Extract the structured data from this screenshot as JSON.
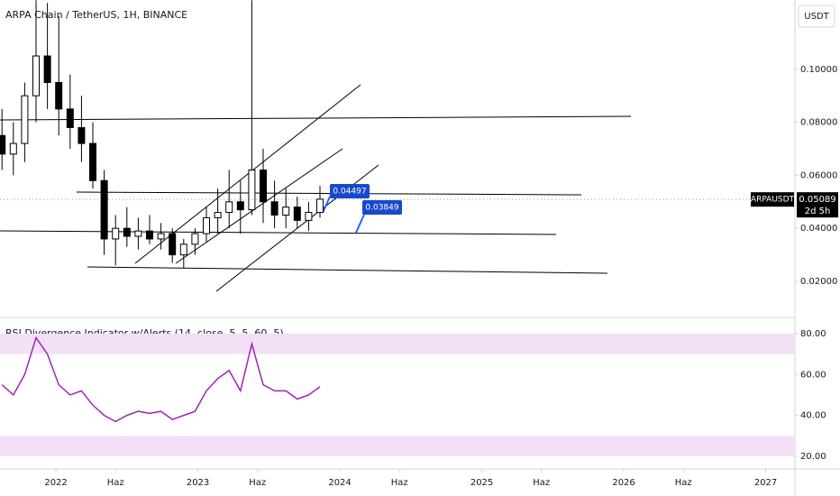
{
  "chart_data": [
    {
      "type": "candlestick",
      "title": "ARPA Chain / TetherUS, 1H, BINANCE",
      "axis_label": "USDT",
      "x": [
        2021.62,
        2021.7,
        2021.78,
        2021.86,
        2021.94,
        2022.02,
        2022.1,
        2022.18,
        2022.26,
        2022.34,
        2022.42,
        2022.5,
        2022.58,
        2022.66,
        2022.74,
        2022.82,
        2022.9,
        2022.98,
        2023.06,
        2023.14,
        2023.22,
        2023.3,
        2023.38,
        2023.46,
        2023.54,
        2023.62,
        2023.7,
        2023.78,
        2023.86
      ],
      "open": [
        0.075,
        0.068,
        0.072,
        0.09,
        0.105,
        0.095,
        0.085,
        0.078,
        0.072,
        0.058,
        0.036,
        0.04,
        0.037,
        0.039,
        0.036,
        0.038,
        0.03,
        0.034,
        0.038,
        0.044,
        0.046,
        0.05,
        0.047,
        0.062,
        0.05,
        0.045,
        0.048,
        0.043,
        0.046
      ],
      "high": [
        0.085,
        0.08,
        0.095,
        0.126,
        0.125,
        0.12,
        0.098,
        0.09,
        0.08,
        0.062,
        0.045,
        0.048,
        0.044,
        0.045,
        0.042,
        0.04,
        0.036,
        0.04,
        0.048,
        0.055,
        0.062,
        0.058,
        0.126,
        0.07,
        0.058,
        0.055,
        0.052,
        0.05,
        0.056
      ],
      "low": [
        0.062,
        0.06,
        0.065,
        0.08,
        0.085,
        0.075,
        0.07,
        0.065,
        0.055,
        0.03,
        0.026,
        0.033,
        0.032,
        0.034,
        0.032,
        0.027,
        0.025,
        0.03,
        0.035,
        0.038,
        0.04,
        0.038,
        0.045,
        0.042,
        0.04,
        0.04,
        0.04,
        0.039,
        0.044
      ],
      "close": [
        0.068,
        0.072,
        0.09,
        0.105,
        0.095,
        0.085,
        0.078,
        0.072,
        0.058,
        0.036,
        0.04,
        0.037,
        0.039,
        0.036,
        0.038,
        0.03,
        0.034,
        0.038,
        0.044,
        0.046,
        0.05,
        0.047,
        0.062,
        0.05,
        0.045,
        0.048,
        0.043,
        0.046,
        0.051
      ],
      "up_color": "#ffffff",
      "down_color": "#000000",
      "xlim": [
        2021.606,
        2027.206
      ],
      "ylim": [
        0.0064,
        0.1261
      ],
      "yticks": [
        {
          "value": 0.02,
          "label": "0.02000"
        },
        {
          "value": 0.04,
          "label": "0.04000"
        },
        {
          "value": 0.06,
          "label": "0.06000"
        },
        {
          "value": 0.08,
          "label": "0.08000"
        },
        {
          "value": 0.1,
          "label": "0.10000"
        }
      ],
      "last_price": {
        "value": 0.05089,
        "label": "0.05089"
      },
      "symbol": "ARPAUSDT",
      "countdown": "2d 5h",
      "annotations": [
        "0.04497",
        "0.03849"
      ]
    },
    {
      "type": "line",
      "title": "RSI Divergence Indicator w/Alerts (14, close, 5, 5, 60, 5)",
      "x": [
        2021.62,
        2021.7,
        2021.78,
        2021.86,
        2021.94,
        2022.02,
        2022.1,
        2022.18,
        2022.26,
        2022.34,
        2022.42,
        2022.5,
        2022.58,
        2022.66,
        2022.74,
        2022.82,
        2022.9,
        2022.98,
        2023.06,
        2023.14,
        2023.22,
        2023.3,
        2023.38,
        2023.46,
        2023.54,
        2023.62,
        2023.7,
        2023.78,
        2023.86
      ],
      "series": [
        {
          "color": "#9c27b0",
          "values": [
            55,
            50,
            60,
            78,
            70,
            55,
            50,
            52,
            45,
            40,
            37,
            40,
            42,
            41,
            42,
            38,
            40,
            42,
            52,
            58,
            62,
            52,
            75,
            55,
            52,
            52,
            48,
            50,
            54
          ]
        }
      ],
      "bands": [
        [
          70,
          80
        ],
        [
          20,
          30
        ]
      ],
      "band_color": "#f3e0f7",
      "xlim": [
        2021.606,
        2027.206
      ],
      "ylim": [
        13.8,
        86.6
      ],
      "xticks": [
        2022,
        {
          "value": 2022.42,
          "label": "Haz"
        },
        2023,
        {
          "value": 2023.42,
          "label": "Haz"
        },
        2024,
        {
          "value": 2024.42,
          "label": "Haz"
        },
        2025,
        {
          "value": 2025.42,
          "label": "Haz"
        },
        2026,
        {
          "value": 2026.42,
          "label": "Haz"
        },
        2027
      ],
      "yticks": [
        {
          "value": 20,
          "label": "20.00"
        },
        {
          "value": 40,
          "label": "40.00"
        },
        {
          "value": 60,
          "label": "60.00"
        },
        {
          "value": 80,
          "label": "80.00"
        }
      ]
    }
  ]
}
